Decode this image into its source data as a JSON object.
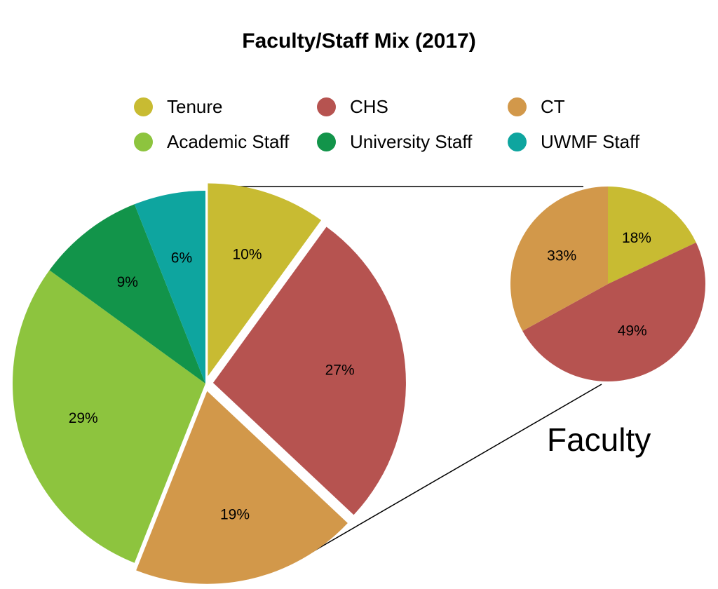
{
  "chart_data": {
    "type": "pie",
    "title": "Faculty/Staff Mix (2017)",
    "legend": [
      {
        "name": "Tenure",
        "color": "#c8bb32"
      },
      {
        "name": "CHS",
        "color": "#b65350"
      },
      {
        "name": "CT",
        "color": "#d2984a"
      },
      {
        "name": "Academic Staff",
        "color": "#8dc43e"
      },
      {
        "name": "University Staff",
        "color": "#12944a"
      },
      {
        "name": "UWMF Staff",
        "color": "#0ea59f"
      }
    ],
    "legend_placement": "top",
    "main_pie": {
      "slices": [
        {
          "category": "Tenure",
          "value": 10,
          "label": "10%",
          "color": "#c8bb32"
        },
        {
          "category": "CHS",
          "value": 27,
          "label": "27%",
          "color": "#b65350"
        },
        {
          "category": "CT",
          "value": 19,
          "label": "19%",
          "color": "#d2984a"
        },
        {
          "category": "Academic Staff",
          "value": 29,
          "label": "29%",
          "color": "#8dc43e"
        },
        {
          "category": "University Staff",
          "value": 9,
          "label": "9%",
          "color": "#12944a"
        },
        {
          "category": "UWMF Staff",
          "value": 6,
          "label": "6%",
          "color": "#0ea59f"
        }
      ]
    },
    "faculty_pie": {
      "label": "Faculty",
      "slices": [
        {
          "category": "Tenure",
          "value": 18,
          "label": "18%",
          "color": "#c8bb32"
        },
        {
          "category": "CHS",
          "value": 49,
          "label": "49%",
          "color": "#b65350"
        },
        {
          "category": "CT",
          "value": 33,
          "label": "33%",
          "color": "#d2984a"
        }
      ]
    }
  }
}
